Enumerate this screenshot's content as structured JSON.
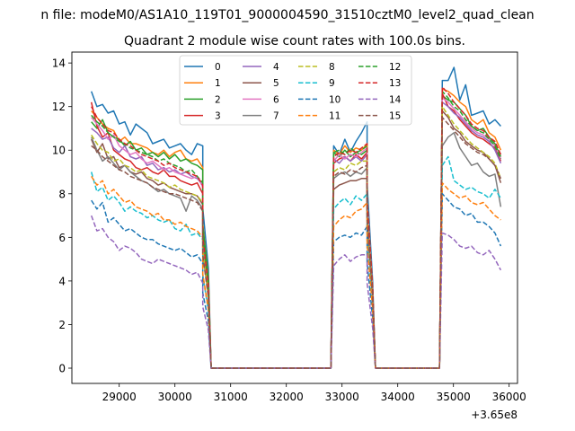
{
  "chart_data": {
    "type": "line",
    "suptitle": "n file: modeM0/AS1A10_119T01_9000004590_31510cztM0_level2_quad_clean",
    "title": "Quadrant 2 module wise count rates with 100.0s bins.",
    "xlabel": "",
    "ylabel": "",
    "x_offset_label": "+3.65e8",
    "xlim": [
      28150,
      36150
    ],
    "ylim": [
      -0.7,
      14.5
    ],
    "xticks": [
      29000,
      30000,
      31000,
      32000,
      33000,
      34000,
      35000,
      36000
    ],
    "yticks": [
      0,
      2,
      4,
      6,
      8,
      10,
      12,
      14
    ],
    "legend_position": "upper center",
    "segments": [
      {
        "x0": 28500,
        "x1": 30500,
        "nbin": 21
      },
      {
        "x0": 32850,
        "x1": 33450,
        "nbin": 7
      },
      {
        "x0": 34800,
        "x1": 35850,
        "nbin": 11
      }
    ],
    "gap_points": [
      30500,
      30600,
      30650,
      32800,
      32850,
      33450,
      33550,
      33600,
      34750,
      34800
    ],
    "series": [
      {
        "name": "0",
        "color": "#1f77b4",
        "dash": "solid",
        "segments": [
          [
            12.7,
            12.0,
            12.1,
            11.7,
            11.8,
            11.2,
            11.3,
            10.7,
            11.2,
            11.0,
            10.8,
            10.3,
            10.4,
            10.5,
            10.1,
            10.2,
            10.3,
            10.0,
            9.8,
            10.3,
            10.2
          ],
          [
            10.2,
            9.8,
            10.5,
            9.9,
            10.4,
            10.8,
            11.3
          ],
          [
            13.2,
            13.2,
            13.8,
            12.3,
            13.0,
            11.6,
            11.7,
            11.8,
            11.2,
            11.4,
            11.1
          ]
        ]
      },
      {
        "name": "1",
        "color": "#ff7f0e",
        "dash": "solid",
        "segments": [
          [
            11.8,
            11.5,
            11.2,
            11.0,
            10.9,
            10.4,
            10.6,
            10.3,
            10.3,
            10.2,
            10.1,
            9.9,
            9.8,
            10.0,
            9.7,
            9.9,
            10.0,
            9.6,
            9.5,
            9.6,
            9.2
          ],
          [
            10.0,
            9.8,
            10.2,
            9.9,
            10.1,
            10.0,
            10.3
          ],
          [
            12.8,
            12.7,
            12.5,
            12.2,
            12.0,
            11.4,
            11.2,
            11.4,
            10.8,
            10.6,
            10.0
          ]
        ]
      },
      {
        "name": "2",
        "color": "#2ca02c",
        "dash": "solid",
        "segments": [
          [
            11.3,
            11.0,
            11.4,
            10.8,
            10.6,
            10.5,
            10.2,
            10.4,
            10.0,
            10.1,
            9.8,
            9.9,
            9.7,
            9.9,
            9.6,
            9.8,
            9.5,
            9.6,
            9.4,
            9.3,
            9.1
          ],
          [
            9.9,
            9.7,
            10.0,
            9.7,
            9.9,
            9.8,
            10.0
          ],
          [
            12.5,
            12.3,
            12.2,
            11.9,
            11.6,
            11.1,
            10.9,
            11.0,
            10.6,
            10.3,
            9.7
          ]
        ]
      },
      {
        "name": "3",
        "color": "#d62728",
        "dash": "solid",
        "segments": [
          [
            12.2,
            11.1,
            10.6,
            10.8,
            10.0,
            9.8,
            9.6,
            9.5,
            9.2,
            9.1,
            9.2,
            9.0,
            8.9,
            9.1,
            8.8,
            8.8,
            8.6,
            8.5,
            8.4,
            8.5,
            8.0
          ],
          [
            9.4,
            9.6,
            9.7,
            9.5,
            9.8,
            9.6,
            9.9
          ],
          [
            12.6,
            12.0,
            11.8,
            11.4,
            11.1,
            10.8,
            10.6,
            10.5,
            10.3,
            10.1,
            9.5
          ]
        ]
      },
      {
        "name": "4",
        "color": "#9467bd",
        "dash": "solid",
        "segments": [
          [
            11.0,
            10.8,
            10.5,
            10.6,
            10.1,
            9.9,
            10.2,
            9.7,
            9.6,
            9.7,
            9.3,
            9.4,
            9.1,
            9.2,
            9.0,
            9.1,
            8.9,
            9.0,
            8.8,
            8.7,
            8.4
          ],
          [
            9.6,
            9.4,
            9.7,
            9.5,
            9.7,
            9.5,
            9.8
          ],
          [
            12.2,
            12.0,
            11.7,
            11.5,
            11.2,
            10.9,
            10.7,
            10.6,
            10.4,
            10.0,
            9.4
          ]
        ]
      },
      {
        "name": "5",
        "color": "#8c564b",
        "dash": "solid",
        "segments": [
          [
            10.5,
            9.9,
            10.3,
            9.6,
            9.7,
            9.2,
            9.3,
            9.0,
            8.9,
            9.0,
            8.7,
            8.6,
            8.4,
            8.5,
            8.3,
            8.2,
            8.1,
            8.0,
            8.0,
            7.9,
            7.5
          ],
          [
            8.2,
            8.4,
            8.5,
            8.6,
            8.6,
            8.7,
            8.7
          ],
          [
            11.8,
            11.5,
            11.0,
            10.8,
            10.4,
            10.2,
            10.0,
            9.9,
            9.6,
            9.3,
            8.5
          ]
        ]
      },
      {
        "name": "6",
        "color": "#e377c2",
        "dash": "solid",
        "segments": [
          [
            11.5,
            11.2,
            10.9,
            10.5,
            10.7,
            10.2,
            10.0,
            9.8,
            9.9,
            9.6,
            9.4,
            9.5,
            9.3,
            9.1,
            9.2,
            9.0,
            8.9,
            8.8,
            8.7,
            8.8,
            8.3
          ],
          [
            9.5,
            9.8,
            9.6,
            9.8,
            9.7,
            9.9,
            10.1
          ],
          [
            12.4,
            12.2,
            11.9,
            11.6,
            11.3,
            11.0,
            10.8,
            10.7,
            10.5,
            10.2,
            9.6
          ]
        ]
      },
      {
        "name": "7",
        "color": "#7f7f7f",
        "dash": "solid",
        "segments": [
          [
            10.6,
            10.0,
            9.5,
            9.7,
            9.4,
            9.1,
            9.3,
            9.0,
            8.8,
            8.6,
            8.5,
            8.3,
            8.1,
            8.2,
            8.0,
            7.9,
            7.8,
            7.2,
            7.9,
            7.7,
            7.3
          ],
          [
            8.7,
            8.9,
            9.0,
            8.8,
            9.0,
            8.9,
            9.2
          ],
          [
            10.2,
            10.6,
            10.8,
            10.1,
            9.7,
            9.3,
            9.4,
            9.0,
            8.8,
            8.9,
            7.4
          ]
        ]
      },
      {
        "name": "8",
        "color": "#bcbd22",
        "dash": "dashed",
        "segments": [
          [
            10.7,
            10.3,
            10.0,
            9.9,
            9.5,
            9.6,
            9.3,
            9.2,
            9.0,
            9.1,
            8.8,
            8.7,
            8.6,
            8.5,
            8.3,
            8.4,
            8.2,
            8.1,
            8.0,
            7.9,
            7.6
          ],
          [
            9.0,
            9.2,
            9.1,
            9.4,
            9.3,
            9.5,
            9.5
          ],
          [
            12.0,
            11.6,
            11.2,
            10.9,
            10.6,
            10.3,
            10.1,
            9.9,
            9.7,
            9.4,
            8.7
          ]
        ]
      },
      {
        "name": "9",
        "color": "#17becf",
        "dash": "dashed",
        "segments": [
          [
            9.0,
            8.1,
            8.3,
            7.7,
            7.9,
            7.6,
            7.2,
            7.4,
            7.2,
            7.1,
            6.9,
            7.0,
            6.8,
            6.7,
            6.8,
            6.4,
            6.3,
            6.6,
            6.1,
            6.2,
            5.9
          ],
          [
            7.3,
            7.6,
            7.8,
            7.5,
            7.9,
            7.7,
            8.0
          ],
          [
            9.3,
            9.7,
            8.6,
            8.4,
            8.2,
            8.3,
            8.1,
            8.0,
            7.8,
            8.2,
            7.8
          ]
        ]
      },
      {
        "name": "10",
        "color": "#1f77b4",
        "dash": "dashed",
        "segments": [
          [
            7.7,
            7.3,
            7.6,
            6.7,
            6.9,
            6.6,
            6.3,
            6.4,
            6.2,
            6.0,
            5.9,
            5.9,
            5.7,
            5.6,
            5.5,
            5.4,
            5.5,
            5.3,
            5.1,
            5.2,
            4.8
          ],
          [
            5.8,
            6.0,
            6.1,
            6.0,
            6.2,
            6.1,
            6.5
          ],
          [
            8.0,
            7.7,
            7.4,
            7.3,
            7.0,
            7.1,
            6.7,
            6.7,
            6.5,
            6.2,
            5.6
          ]
        ]
      },
      {
        "name": "11",
        "color": "#ff7f0e",
        "dash": "dashed",
        "segments": [
          [
            8.8,
            8.4,
            8.6,
            8.0,
            8.2,
            7.9,
            7.6,
            7.7,
            7.4,
            7.3,
            7.2,
            7.0,
            7.1,
            6.8,
            6.8,
            6.6,
            6.7,
            6.5,
            6.4,
            6.3,
            6.0
          ],
          [
            6.5,
            6.8,
            7.0,
            6.9,
            7.2,
            7.3,
            7.6
          ],
          [
            8.5,
            8.2,
            8.0,
            7.8,
            7.9,
            7.6,
            7.5,
            7.6,
            7.3,
            7.0,
            6.8
          ]
        ]
      },
      {
        "name": "12",
        "color": "#2ca02c",
        "dash": "dashed",
        "segments": [
          [
            11.6,
            11.3,
            11.1,
            10.8,
            10.6,
            10.4,
            10.3,
            10.1,
            10.0,
            9.9,
            9.8,
            9.7,
            9.5,
            9.6,
            9.4,
            9.3,
            9.2,
            9.0,
            9.1,
            8.8,
            8.5
          ],
          [
            9.9,
            10.0,
            9.8,
            10.1,
            9.9,
            10.0,
            10.2
          ],
          [
            12.7,
            12.4,
            12.0,
            11.8,
            11.4,
            11.1,
            10.9,
            10.8,
            10.5,
            10.2,
            9.6
          ]
        ]
      },
      {
        "name": "13",
        "color": "#d62728",
        "dash": "dashed",
        "segments": [
          [
            12.0,
            11.5,
            11.2,
            10.9,
            10.8,
            10.5,
            10.3,
            10.2,
            10.0,
            9.8,
            9.7,
            9.6,
            9.5,
            9.3,
            9.4,
            9.2,
            9.1,
            9.0,
            8.9,
            8.8,
            8.4
          ],
          [
            9.7,
            9.9,
            9.8,
            10.0,
            9.9,
            10.1,
            10.3
          ],
          [
            12.9,
            12.6,
            12.2,
            11.9,
            11.6,
            11.2,
            11.0,
            10.9,
            10.6,
            10.4,
            9.8
          ]
        ]
      },
      {
        "name": "14",
        "color": "#9467bd",
        "dash": "dashed",
        "segments": [
          [
            7.0,
            6.3,
            6.4,
            6.0,
            5.8,
            5.4,
            5.6,
            5.5,
            5.3,
            5.0,
            4.9,
            4.8,
            5.0,
            4.9,
            4.8,
            4.7,
            4.6,
            4.5,
            4.3,
            4.4,
            3.9
          ],
          [
            4.7,
            5.0,
            5.2,
            4.9,
            5.1,
            5.2,
            5.2
          ],
          [
            6.2,
            6.1,
            5.9,
            5.6,
            5.5,
            5.6,
            5.3,
            5.2,
            5.4,
            5.0,
            4.5
          ]
        ]
      },
      {
        "name": "15",
        "color": "#8c564b",
        "dash": "dashed",
        "segments": [
          [
            10.2,
            10.0,
            9.7,
            9.5,
            9.3,
            9.1,
            9.0,
            8.8,
            8.7,
            8.6,
            8.5,
            8.3,
            8.2,
            8.1,
            8.0,
            8.0,
            7.9,
            7.8,
            7.7,
            7.6,
            7.2
          ],
          [
            8.8,
            9.0,
            8.9,
            9.1,
            9.0,
            9.2,
            9.3
          ],
          [
            11.5,
            11.2,
            10.9,
            10.6,
            10.3,
            10.1,
            9.9,
            9.8,
            9.6,
            9.3,
            8.7
          ]
        ]
      }
    ]
  }
}
